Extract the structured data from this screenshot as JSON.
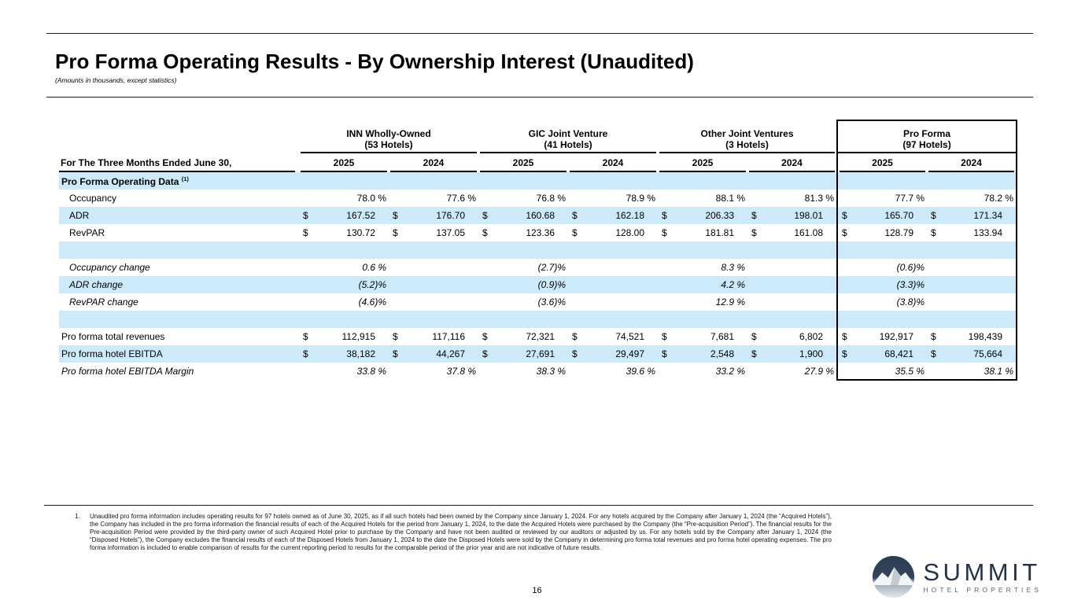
{
  "header": {
    "title": "Pro Forma Operating Results - By Ownership Interest (Unaudited)",
    "subtitle": "(Amounts in thousands, except statistics)"
  },
  "table": {
    "row_header": "For The Three Months Ended June 30,",
    "currency": "$",
    "groups": [
      {
        "name": "INN Wholly-Owned",
        "sub": "(53 Hotels)",
        "years": [
          "2025",
          "2024"
        ],
        "boxed": false
      },
      {
        "name": "GIC Joint Venture",
        "sub": "(41 Hotels)",
        "years": [
          "2025",
          "2024"
        ],
        "boxed": false
      },
      {
        "name": "Other Joint Ventures",
        "sub": "(3 Hotels)",
        "years": [
          "2025",
          "2024"
        ],
        "boxed": false
      },
      {
        "name": "Pro Forma",
        "sub": "(97 Hotels)",
        "years": [
          "2025",
          "2024"
        ],
        "boxed": true
      }
    ],
    "rows": [
      {
        "label": "Pro Forma Operating Data",
        "sup": "(1)",
        "style": "bold",
        "indent": false,
        "shade": true,
        "type": "section",
        "cells": [
          "",
          "",
          "",
          "",
          "",
          "",
          "",
          ""
        ]
      },
      {
        "label": "Occupancy",
        "style": "normal",
        "indent": true,
        "shade": false,
        "type": "pct",
        "cells": [
          "78.0 %",
          "77.6 %",
          "76.8 %",
          "78.9 %",
          "88.1 %",
          "81.3 %",
          "77.7 %",
          "78.2 %"
        ]
      },
      {
        "label": "ADR",
        "style": "normal",
        "indent": true,
        "shade": true,
        "type": "money",
        "cells": [
          "167.52",
          "176.70",
          "160.68",
          "162.18",
          "206.33",
          "198.01",
          "165.70",
          "171.34"
        ]
      },
      {
        "label": "RevPAR",
        "style": "normal",
        "indent": true,
        "shade": false,
        "type": "money",
        "cells": [
          "130.72",
          "137.05",
          "123.36",
          "128.00",
          "181.81",
          "161.08",
          "128.79",
          "133.94"
        ]
      },
      {
        "label": "",
        "style": "normal",
        "indent": false,
        "shade": true,
        "type": "blank",
        "cells": [
          "",
          "",
          "",
          "",
          "",
          "",
          "",
          ""
        ]
      },
      {
        "label": "Occupancy change",
        "style": "italic",
        "indent": true,
        "shade": false,
        "type": "pct",
        "cells": [
          "0.6 %",
          "",
          "(2.7)%",
          "",
          "8.3 %",
          "",
          "(0.6)%",
          ""
        ]
      },
      {
        "label": "ADR change",
        "style": "italic",
        "indent": true,
        "shade": true,
        "type": "pct",
        "cells": [
          "(5.2)%",
          "",
          "(0.9)%",
          "",
          "4.2 %",
          "",
          "(3.3)%",
          ""
        ]
      },
      {
        "label": "RevPAR change",
        "style": "italic",
        "indent": true,
        "shade": false,
        "type": "pct",
        "cells": [
          "(4.6)%",
          "",
          "(3.6)%",
          "",
          "12.9 %",
          "",
          "(3.8)%",
          ""
        ]
      },
      {
        "label": "",
        "style": "normal",
        "indent": false,
        "shade": true,
        "type": "blank",
        "cells": [
          "",
          "",
          "",
          "",
          "",
          "",
          "",
          ""
        ]
      },
      {
        "label": "Pro forma total revenues",
        "style": "normal",
        "indent": false,
        "shade": false,
        "type": "money",
        "cells": [
          "112,915",
          "117,116",
          "72,321",
          "74,521",
          "7,681",
          "6,802",
          "192,917",
          "198,439"
        ]
      },
      {
        "label": "Pro forma hotel EBITDA",
        "style": "normal",
        "indent": false,
        "shade": true,
        "type": "money",
        "cells": [
          "38,182",
          "44,267",
          "27,691",
          "29,497",
          "2,548",
          "1,900",
          "68,421",
          "75,664"
        ]
      },
      {
        "label": "Pro forma hotel EBITDA Margin",
        "style": "italic",
        "indent": false,
        "shade": false,
        "type": "pct",
        "cells": [
          "33.8 %",
          "37.8 %",
          "38.3 %",
          "39.6 %",
          "33.2 %",
          "27.9 %",
          "35.5 %",
          "38.1 %"
        ]
      }
    ]
  },
  "footnote": {
    "number": "1.",
    "text": "Unaudited pro forma information includes operating results for 97 hotels owned as of June 30, 2025, as if all such hotels had been owned by the Company since January 1, 2024. For any hotels acquired by the Company after January 1, 2024 (the “Acquired Hotels”), the Company has included in the pro forma information the financial results of each of the Acquired Hotels for the period from January 1, 2024, to the date the Acquired Hotels were purchased by the Company (the “Pre-acquisition Period”). The financial results for the Pre-acquisition Period were provided by the third-party owner of such Acquired Hotel prior to purchase by the Company and have not been audited or reviewed by our auditors or adjusted by us. For any hotels sold by the Company after January 1, 2024 (the “Disposed Hotels”), the Company excludes the financial results of each of the Disposed Hotels from January 1, 2024 to the date the Disposed Hotels were sold by the Company in determining pro forma total revenues and pro forma hotel operating expenses. The pro forma information is included to enable comparison of results for the current reporting period to results for the comparable period of the prior year and are not indicative of future results."
  },
  "logo": {
    "name": "SUMMIT",
    "tagline": "HOTEL PROPERTIES"
  },
  "footer": {
    "page_number": "16"
  },
  "colors": {
    "band_blue": "#cdeafa",
    "logo_navy": "#24324a",
    "line_black": "#000000"
  }
}
